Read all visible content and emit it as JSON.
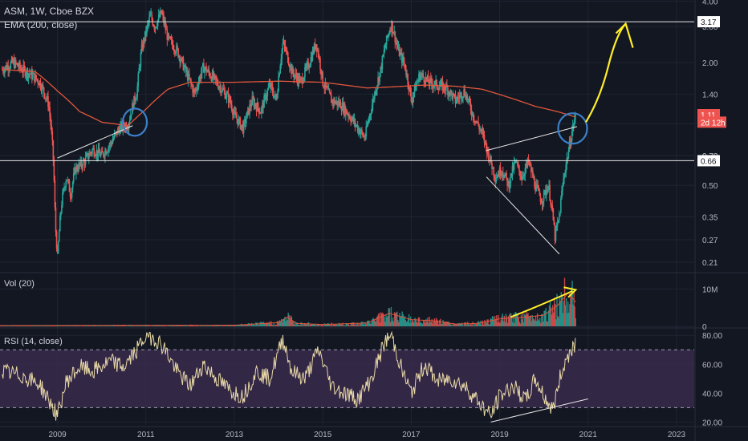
{
  "header": {
    "title": "ASM, 1W, Cboe BZX",
    "ema_label": "EMA (200, close)",
    "vol_label": "Vol (20)",
    "rsi_label": "RSI (14, close)"
  },
  "colors": {
    "background": "#131722",
    "grid": "#1f2433",
    "candle_up": "#26a69a",
    "candle_down": "#ef5350",
    "ema": "#e0573b",
    "rsi_line": "#e8d9a6",
    "rsi_band": "#3a2a4c",
    "annotation_yellow": "#ffef2a",
    "annotation_circle": "#3b80c9",
    "label_box": "#ef5350",
    "white_line": "#e6e6e6",
    "axis_text": "#b2b5be"
  },
  "chart_data": [
    {
      "type": "candlestick",
      "scale": "log",
      "ylim": [
        0.19,
        4.05
      ],
      "xlim": [
        2007.7,
        2023.4
      ],
      "price_ticks": [
        "4.00",
        "3.00",
        "2.00",
        "1.40",
        "1.00",
        "0.70",
        "0.50",
        "0.35",
        "0.27",
        "0.21"
      ],
      "price_tick_values": [
        4.0,
        3.0,
        2.0,
        1.4,
        1.0,
        0.7,
        0.5,
        0.35,
        0.27,
        0.21
      ],
      "x_ticks": [
        "2009",
        "2011",
        "2013",
        "2015",
        "2017",
        "2019",
        "2021",
        "2023"
      ],
      "x_tick_values": [
        2009,
        2011,
        2013,
        2015,
        2017,
        2019,
        2021,
        2023
      ],
      "price_path": [
        [
          2007.75,
          1.85
        ],
        [
          2008.0,
          2.0
        ],
        [
          2008.2,
          1.85
        ],
        [
          2008.4,
          1.75
        ],
        [
          2008.6,
          1.6
        ],
        [
          2008.8,
          1.25
        ],
        [
          2008.9,
          0.7
        ],
        [
          2008.95,
          0.32
        ],
        [
          2009.0,
          0.22
        ],
        [
          2009.1,
          0.42
        ],
        [
          2009.2,
          0.55
        ],
        [
          2009.3,
          0.45
        ],
        [
          2009.4,
          0.6
        ],
        [
          2009.6,
          0.65
        ],
        [
          2009.8,
          0.75
        ],
        [
          2010.0,
          0.7
        ],
        [
          2010.2,
          0.8
        ],
        [
          2010.4,
          0.95
        ],
        [
          2010.6,
          1.0
        ],
        [
          2010.8,
          1.45
        ],
        [
          2010.9,
          2.3
        ],
        [
          2011.0,
          2.8
        ],
        [
          2011.1,
          3.4
        ],
        [
          2011.2,
          3.0
        ],
        [
          2011.35,
          3.5
        ],
        [
          2011.5,
          2.6
        ],
        [
          2011.7,
          2.3
        ],
        [
          2011.9,
          1.8
        ],
        [
          2012.1,
          1.4
        ],
        [
          2012.3,
          1.9
        ],
        [
          2012.5,
          1.7
        ],
        [
          2012.7,
          1.5
        ],
        [
          2012.9,
          1.3
        ],
        [
          2013.0,
          1.1
        ],
        [
          2013.2,
          0.95
        ],
        [
          2013.4,
          1.3
        ],
        [
          2013.6,
          1.15
        ],
        [
          2013.8,
          1.55
        ],
        [
          2013.95,
          1.3
        ],
        [
          2014.1,
          2.5
        ],
        [
          2014.3,
          1.8
        ],
        [
          2014.5,
          1.6
        ],
        [
          2014.7,
          2.0
        ],
        [
          2014.85,
          2.5
        ],
        [
          2015.0,
          1.6
        ],
        [
          2015.2,
          1.3
        ],
        [
          2015.4,
          1.25
        ],
        [
          2015.6,
          1.1
        ],
        [
          2015.8,
          0.95
        ],
        [
          2015.95,
          0.85
        ],
        [
          2016.1,
          1.2
        ],
        [
          2016.3,
          1.8
        ],
        [
          2016.45,
          2.6
        ],
        [
          2016.55,
          3.1
        ],
        [
          2016.7,
          2.3
        ],
        [
          2016.85,
          1.95
        ],
        [
          2017.0,
          1.3
        ],
        [
          2017.2,
          1.75
        ],
        [
          2017.4,
          1.6
        ],
        [
          2017.6,
          1.55
        ],
        [
          2017.8,
          1.5
        ],
        [
          2018.0,
          1.3
        ],
        [
          2018.2,
          1.45
        ],
        [
          2018.4,
          1.1
        ],
        [
          2018.6,
          0.9
        ],
        [
          2018.75,
          0.7
        ],
        [
          2018.9,
          0.55
        ],
        [
          2019.05,
          0.6
        ],
        [
          2019.2,
          0.5
        ],
        [
          2019.35,
          0.65
        ],
        [
          2019.5,
          0.55
        ],
        [
          2019.65,
          0.65
        ],
        [
          2019.8,
          0.5
        ],
        [
          2019.95,
          0.42
        ],
        [
          2020.1,
          0.5
        ],
        [
          2020.25,
          0.28
        ],
        [
          2020.35,
          0.35
        ],
        [
          2020.45,
          0.55
        ],
        [
          2020.55,
          0.72
        ],
        [
          2020.65,
          0.95
        ],
        [
          2020.72,
          1.11
        ]
      ],
      "ema_path": [
        [
          2007.75,
          1.85
        ],
        [
          2008.5,
          1.8
        ],
        [
          2009.0,
          1.45
        ],
        [
          2009.5,
          1.15
        ],
        [
          2010.0,
          1.02
        ],
        [
          2010.6,
          0.98
        ],
        [
          2011.0,
          1.18
        ],
        [
          2011.5,
          1.48
        ],
        [
          2012.0,
          1.6
        ],
        [
          2013.0,
          1.6
        ],
        [
          2014.0,
          1.62
        ],
        [
          2015.0,
          1.6
        ],
        [
          2016.0,
          1.5
        ],
        [
          2016.6,
          1.52
        ],
        [
          2017.3,
          1.55
        ],
        [
          2018.0,
          1.53
        ],
        [
          2018.6,
          1.48
        ],
        [
          2019.2,
          1.35
        ],
        [
          2019.8,
          1.22
        ],
        [
          2020.3,
          1.15
        ],
        [
          2020.72,
          1.08
        ]
      ],
      "horizontal_levels": [
        3.17,
        0.66
      ],
      "price_labels": [
        {
          "text": "3.17",
          "value": 3.17,
          "style": "white"
        },
        {
          "text": "1.11",
          "value": 1.11,
          "style": "red"
        },
        {
          "text": "2d 12h",
          "value": 1.02,
          "style": "red"
        },
        {
          "text": "0.66",
          "value": 0.66,
          "style": "white"
        }
      ],
      "overlapped_tick": {
        "text": "0.70",
        "value": 0.7
      }
    },
    {
      "type": "bar",
      "name": "Vol (20)",
      "ylim": [
        0,
        14000000
      ],
      "y_ticks": [
        "10M",
        "0"
      ],
      "y_tick_values": [
        10000000,
        0
      ],
      "volume_path": [
        [
          2007.7,
          0.2
        ],
        [
          2013.0,
          0.3
        ],
        [
          2014.0,
          1.0
        ],
        [
          2014.2,
          2.5
        ],
        [
          2014.4,
          0.8
        ],
        [
          2015.0,
          0.5
        ],
        [
          2016.0,
          0.9
        ],
        [
          2016.5,
          3.5
        ],
        [
          2017.0,
          1.8
        ],
        [
          2017.5,
          1.5
        ],
        [
          2018.0,
          0.6
        ],
        [
          2018.5,
          0.8
        ],
        [
          2019.0,
          2.0
        ],
        [
          2019.6,
          2.5
        ],
        [
          2020.0,
          3.0
        ],
        [
          2020.3,
          5.5
        ],
        [
          2020.55,
          9.0
        ],
        [
          2020.72,
          6.5
        ]
      ]
    },
    {
      "type": "line",
      "name": "RSI (14, close)",
      "ylim": [
        18,
        84
      ],
      "y_ticks": [
        "80.00",
        "60.00",
        "40.00",
        "20.00"
      ],
      "y_tick_values": [
        80,
        60,
        40,
        20
      ],
      "band": [
        30,
        70
      ],
      "rsi_path": [
        [
          2007.75,
          55
        ],
        [
          2008.2,
          52
        ],
        [
          2008.6,
          46
        ],
        [
          2008.9,
          30
        ],
        [
          2009.0,
          24
        ],
        [
          2009.2,
          48
        ],
        [
          2009.5,
          58
        ],
        [
          2009.8,
          55
        ],
        [
          2010.2,
          62
        ],
        [
          2010.5,
          58
        ],
        [
          2010.8,
          70
        ],
        [
          2011.0,
          80
        ],
        [
          2011.2,
          78
        ],
        [
          2011.4,
          72
        ],
        [
          2011.7,
          55
        ],
        [
          2012.0,
          45
        ],
        [
          2012.3,
          60
        ],
        [
          2012.6,
          50
        ],
        [
          2012.9,
          42
        ],
        [
          2013.2,
          38
        ],
        [
          2013.5,
          55
        ],
        [
          2013.8,
          50
        ],
        [
          2014.1,
          78
        ],
        [
          2014.3,
          55
        ],
        [
          2014.6,
          50
        ],
        [
          2014.9,
          70
        ],
        [
          2015.2,
          45
        ],
        [
          2015.5,
          40
        ],
        [
          2015.8,
          36
        ],
        [
          2016.1,
          50
        ],
        [
          2016.4,
          75
        ],
        [
          2016.55,
          80
        ],
        [
          2016.8,
          55
        ],
        [
          2017.0,
          40
        ],
        [
          2017.3,
          60
        ],
        [
          2017.6,
          48
        ],
        [
          2017.9,
          50
        ],
        [
          2018.2,
          45
        ],
        [
          2018.5,
          35
        ],
        [
          2018.8,
          24
        ],
        [
          2019.0,
          38
        ],
        [
          2019.3,
          45
        ],
        [
          2019.6,
          35
        ],
        [
          2019.8,
          50
        ],
        [
          2020.0,
          38
        ],
        [
          2020.2,
          28
        ],
        [
          2020.4,
          55
        ],
        [
          2020.6,
          70
        ],
        [
          2020.72,
          75
        ]
      ]
    }
  ]
}
